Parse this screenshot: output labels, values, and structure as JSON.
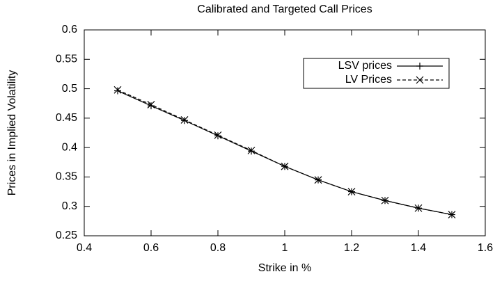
{
  "chart_data": {
    "type": "line",
    "title": "Calibrated and Targeted Call Prices",
    "xlabel": "Strike in %",
    "ylabel": "Prices in Implied Volatility",
    "x": [
      0.5,
      0.6,
      0.7,
      0.8,
      0.9,
      1.0,
      1.1,
      1.2,
      1.3,
      1.4,
      1.5
    ],
    "series": [
      {
        "name": "LSV prices",
        "color": "#000000",
        "marker": "+",
        "dashed": false,
        "values": [
          0.4965,
          0.471,
          0.446,
          0.42,
          0.394,
          0.368,
          0.345,
          0.325,
          0.31,
          0.297,
          0.286
        ]
      },
      {
        "name": "LV Prices",
        "color": "#000000",
        "marker": "x",
        "dashed": true,
        "values": [
          0.498,
          0.473,
          0.447,
          0.421,
          0.395,
          0.368,
          0.345,
          0.325,
          0.31,
          0.297,
          0.286
        ]
      }
    ],
    "xlim": [
      0.4,
      1.6
    ],
    "xticks": [
      0.4,
      0.6,
      0.8,
      1,
      1.2,
      1.4,
      1.6
    ],
    "ylim": [
      0.25,
      0.6
    ],
    "yticks": [
      0.25,
      0.3,
      0.35,
      0.4,
      0.45,
      0.5,
      0.55,
      0.6
    ],
    "legend": "upper right",
    "grid": false
  }
}
